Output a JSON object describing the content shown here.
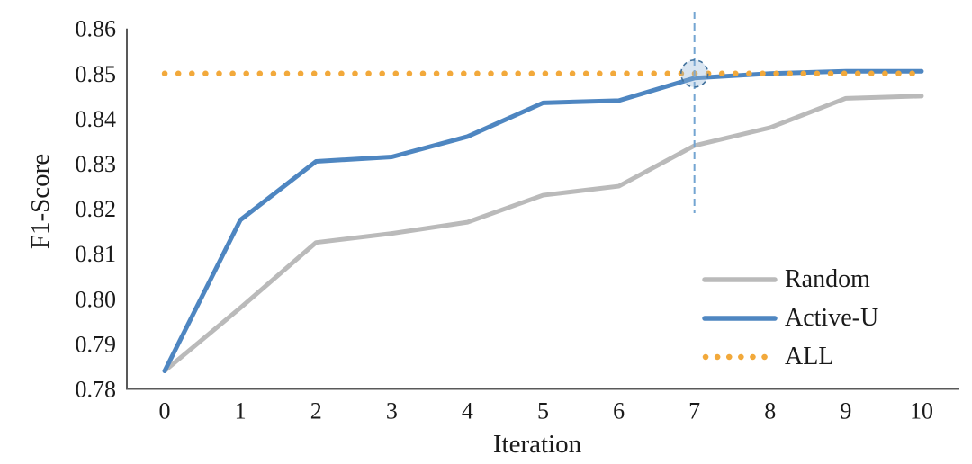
{
  "chart_data": {
    "type": "line",
    "title": "",
    "xlabel": "Iteration",
    "ylabel": "F1-Score",
    "x": [
      0,
      1,
      2,
      3,
      4,
      5,
      6,
      7,
      8,
      9,
      10
    ],
    "ylim": [
      0.78,
      0.86
    ],
    "yticks": [
      0.78,
      0.79,
      0.8,
      0.81,
      0.82,
      0.83,
      0.84,
      0.85,
      0.86
    ],
    "grid": "off",
    "legend_position": "right-middle",
    "series": [
      {
        "name": "Random",
        "style": "solid",
        "color": "#BABABA",
        "values": [
          0.784,
          0.798,
          0.8125,
          0.8145,
          0.817,
          0.823,
          0.825,
          0.834,
          0.838,
          0.8445,
          0.845
        ]
      },
      {
        "name": "Active-U",
        "style": "solid",
        "color": "#4E86C1",
        "values": [
          0.784,
          0.8175,
          0.8305,
          0.8315,
          0.836,
          0.8435,
          0.844,
          0.849,
          0.85,
          0.8505,
          0.8505
        ]
      },
      {
        "name": "ALL",
        "style": "dotted",
        "color": "#F2A93B",
        "values": [
          0.85,
          0.85,
          0.85,
          0.85,
          0.85,
          0.85,
          0.85,
          0.85,
          0.85,
          0.85,
          0.85
        ]
      }
    ],
    "annotations": {
      "vline": {
        "x": 7,
        "style": "dashed",
        "color": "#74A5D2"
      },
      "circle": {
        "x": 7,
        "y": 0.85,
        "style": "dashed",
        "color": "#41719C"
      }
    },
    "colors": {
      "axis": "#595959",
      "text": "#1A1A1A"
    }
  }
}
